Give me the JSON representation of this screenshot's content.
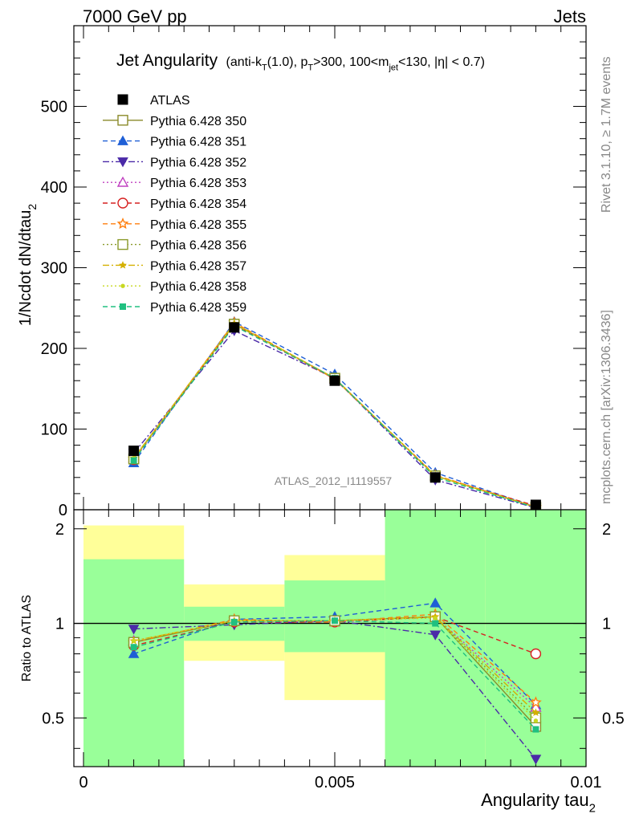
{
  "header": {
    "left": "7000 GeV pp",
    "right": "Jets"
  },
  "side": {
    "rivet": "Rivet 3.1.10, ≥ 1.7M events",
    "mcplots": "mcplots.cern.ch [arXiv:1306.3436]"
  },
  "title": {
    "main": "Jet Angularity",
    "sub": "(anti-k_T(1.0), p_T>300, 100<m_jet<130, |η| < 0.7)"
  },
  "watermark": "ATLAS_2012_I1119557",
  "chart_data": [
    {
      "type": "line",
      "ylabel": "1/Ncdot dN/dtau_2",
      "xlim": [
        0,
        0.01
      ],
      "ylim": [
        0,
        600
      ],
      "yticks": [
        0,
        100,
        200,
        300,
        400,
        500
      ],
      "x": [
        0.001,
        0.003,
        0.005,
        0.007,
        0.009
      ],
      "series": [
        {
          "name": "ATLAS",
          "color": "#000000",
          "marker": "square-filled",
          "dash": "none",
          "values": [
            73,
            226,
            160,
            40,
            6
          ]
        },
        {
          "name": "Pythia 6.428 350",
          "color": "#8a8a2a",
          "marker": "square-open",
          "dash": "solid",
          "values": [
            63,
            230,
            163,
            42,
            3
          ]
        },
        {
          "name": "Pythia 6.428 351",
          "color": "#1f5fd6",
          "marker": "triangle-up",
          "dash": "dashed",
          "values": [
            58,
            233,
            168,
            46,
            3.4
          ]
        },
        {
          "name": "Pythia 6.428 352",
          "color": "#4b2aa8",
          "marker": "triangle-down",
          "dash": "dashdot",
          "values": [
            70,
            222,
            163,
            37,
            2.3
          ]
        },
        {
          "name": "Pythia 6.428 353",
          "color": "#c040c0",
          "marker": "triangle-open",
          "dash": "dotted",
          "values": [
            64,
            231,
            162,
            42,
            3.3
          ]
        },
        {
          "name": "Pythia 6.428 354",
          "color": "#d62020",
          "marker": "circle-open",
          "dash": "dashed",
          "values": [
            62,
            229,
            162,
            42,
            4.8
          ]
        },
        {
          "name": "Pythia 6.428 355",
          "color": "#ff7f0e",
          "marker": "star-open",
          "dash": "dashed",
          "values": [
            63,
            232,
            162,
            43,
            3.4
          ]
        },
        {
          "name": "Pythia 6.428 356",
          "color": "#8a9a2a",
          "marker": "square-open",
          "dash": "dotted",
          "values": [
            63,
            230,
            163,
            42,
            3.1
          ]
        },
        {
          "name": "Pythia 6.428 357",
          "color": "#d4b000",
          "marker": "star-small",
          "dash": "dashdot",
          "values": [
            64,
            231,
            163,
            42,
            3.2
          ]
        },
        {
          "name": "Pythia 6.428 358",
          "color": "#c8d820",
          "marker": "dot",
          "dash": "dotted",
          "values": [
            64,
            230,
            163,
            42,
            3.0
          ]
        },
        {
          "name": "Pythia 6.428 359",
          "color": "#20c080",
          "marker": "square-small",
          "dash": "dashed",
          "values": [
            61,
            228,
            163,
            40,
            2.8
          ]
        }
      ]
    },
    {
      "type": "line",
      "xlabel": "Angularity tau_2",
      "ylabel": "Ratio to ATLAS",
      "xlim": [
        0,
        0.01
      ],
      "ylim": [
        0.35,
        2.3
      ],
      "yscale": "log",
      "yticks": [
        0.5,
        1,
        2
      ],
      "xticks": [
        0,
        0.005,
        0.01
      ],
      "x": [
        0.001,
        0.003,
        0.005,
        0.007,
        0.009
      ],
      "bands": [
        {
          "x0": 0,
          "x1": 0.002,
          "green": [
            0.35,
            1.6
          ],
          "yellow": [
            0.35,
            2.05
          ]
        },
        {
          "x0": 0.002,
          "x1": 0.004,
          "green": [
            0.88,
            1.13
          ],
          "yellow": [
            0.76,
            1.33
          ]
        },
        {
          "x0": 0.004,
          "x1": 0.006,
          "green": [
            0.81,
            1.37
          ],
          "yellow": [
            0.57,
            1.65
          ]
        },
        {
          "x0": 0.006,
          "x1": 0.008,
          "green": [
            0.35,
            2.3
          ],
          "yellow": [
            0.35,
            2.3
          ]
        },
        {
          "x0": 0.008,
          "x1": 0.01,
          "green": [
            0.35,
            2.3
          ],
          "yellow": [
            0.35,
            2.3
          ]
        }
      ],
      "series": [
        {
          "name": "Pythia 6.428 350",
          "values": [
            0.87,
            1.02,
            1.02,
            1.05,
            0.47
          ]
        },
        {
          "name": "Pythia 6.428 351",
          "values": [
            0.8,
            1.03,
            1.05,
            1.16,
            0.55
          ]
        },
        {
          "name": "Pythia 6.428 352",
          "values": [
            0.96,
            0.99,
            1.02,
            0.92,
            0.37
          ]
        },
        {
          "name": "Pythia 6.428 353",
          "values": [
            0.88,
            1.02,
            1.01,
            1.05,
            0.54
          ]
        },
        {
          "name": "Pythia 6.428 354",
          "values": [
            0.85,
            1.01,
            1.01,
            1.05,
            0.8
          ]
        },
        {
          "name": "Pythia 6.428 355",
          "values": [
            0.87,
            1.03,
            1.01,
            1.07,
            0.56
          ]
        },
        {
          "name": "Pythia 6.428 356",
          "values": [
            0.87,
            1.02,
            1.02,
            1.05,
            0.5
          ]
        },
        {
          "name": "Pythia 6.428 357",
          "values": [
            0.88,
            1.02,
            1.02,
            1.05,
            0.52
          ]
        },
        {
          "name": "Pythia 6.428 358",
          "values": [
            0.88,
            1.02,
            1.02,
            1.04,
            0.49
          ]
        },
        {
          "name": "Pythia 6.428 359",
          "values": [
            0.84,
            1.01,
            1.02,
            1.0,
            0.46
          ]
        }
      ]
    }
  ]
}
